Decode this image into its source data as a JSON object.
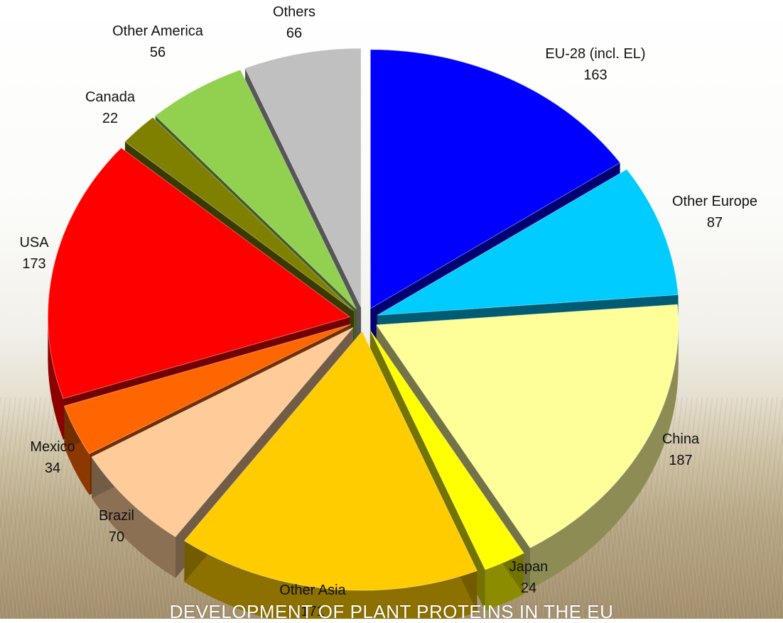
{
  "caption": "DEVELOPMENT OF PLANT PROTEINS IN THE EU",
  "chart_data": {
    "type": "pie",
    "style": "3d-exploded",
    "title": "",
    "slices": [
      {
        "label": "EU-28 (incl. EL)",
        "value": 163,
        "color": "#0000ff"
      },
      {
        "label": "Other Europe",
        "value": 87,
        "color": "#00ccff"
      },
      {
        "label": "China",
        "value": 187,
        "color": "#ffff99"
      },
      {
        "label": "Japan",
        "value": 24,
        "color": "#ffff00"
      },
      {
        "label": "Other Asia",
        "value": 171,
        "color": "#ffcc00"
      },
      {
        "label": "Brazil",
        "value": 70,
        "color": "#ffcc99"
      },
      {
        "label": "Mexico",
        "value": 34,
        "color": "#ff6600"
      },
      {
        "label": "USA",
        "value": 173,
        "color": "#ff0000"
      },
      {
        "label": "Canada",
        "value": 22,
        "color": "#808000"
      },
      {
        "label": "Other America",
        "value": 56,
        "color": "#92d050"
      },
      {
        "label": "Others",
        "value": 66,
        "color": "#c0c0c0"
      }
    ]
  }
}
